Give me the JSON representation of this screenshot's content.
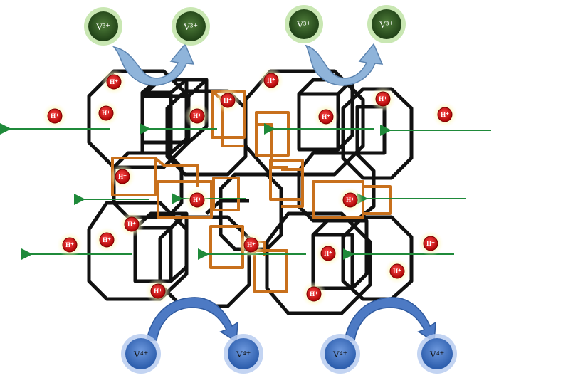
{
  "v3_ions": [
    "V³⁺",
    "V³⁺",
    "V³⁺",
    "V³⁺"
  ],
  "v4_ions": [
    "V⁴⁺",
    "V⁴⁺",
    "V⁴⁺",
    "V⁴⁺"
  ],
  "proton_label": "H⁺",
  "colors": {
    "v3_fill": "#2f5a24",
    "v3_glow": "#bfe3a6",
    "v4_fill": "#3f73c8",
    "v4_glow": "#b9cdf0",
    "proton_fill": "#cc1111",
    "proton_glow": "#f7f29a",
    "cage_stroke": "#111111",
    "channel_stroke": "#c8701c",
    "flow_arrow": "#1f8a3a",
    "curved_arrow_v3": "#8fb4da",
    "curved_arrow_v4": "#4d7ac4"
  },
  "icons": [
    "sodalite-cage-icon",
    "double-ring-prism-icon",
    "proton-icon",
    "vanadium-ion-icon",
    "curved-arrow-icon",
    "flow-arrow-icon"
  ]
}
